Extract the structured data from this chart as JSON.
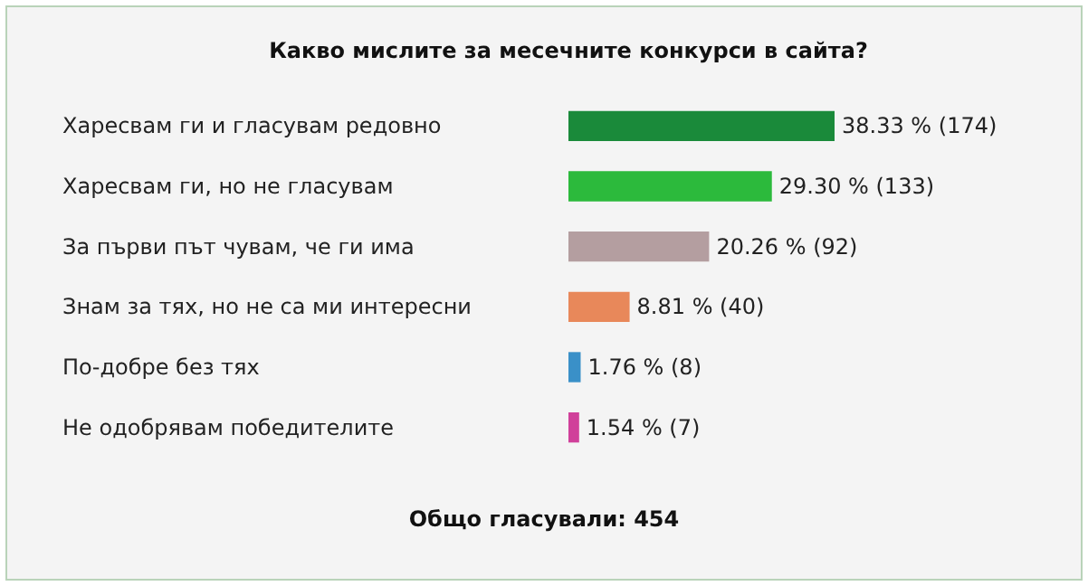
{
  "chart_data": {
    "type": "bar",
    "orientation": "horizontal",
    "title": "Какво мислите за месечните конкурси в сайта?",
    "categories": [
      "Харесвам ги и гласувам редовно",
      "Харесвам ги, но не гласувам",
      "За първи път чувам, че ги има",
      "Знам за тях, но не са ми интересни",
      "По-добре без тях",
      "Не одобрявам победителите"
    ],
    "values": [
      38.33,
      29.3,
      20.26,
      8.81,
      1.76,
      1.54
    ],
    "colors": [
      "#1a8a3a",
      "#2cba3c",
      "#b49ea0",
      "#e8885a",
      "#3a90c8",
      "#d0409a"
    ],
    "value_labels": [
      "38.33 % (174)",
      "29.30 % (133)",
      "20.26 % (92)",
      "8.81 % (40)",
      "1.76 % (8)",
      "1.54 % (7)"
    ],
    "annotations": [
      "Общо гласували: 454"
    ]
  }
}
